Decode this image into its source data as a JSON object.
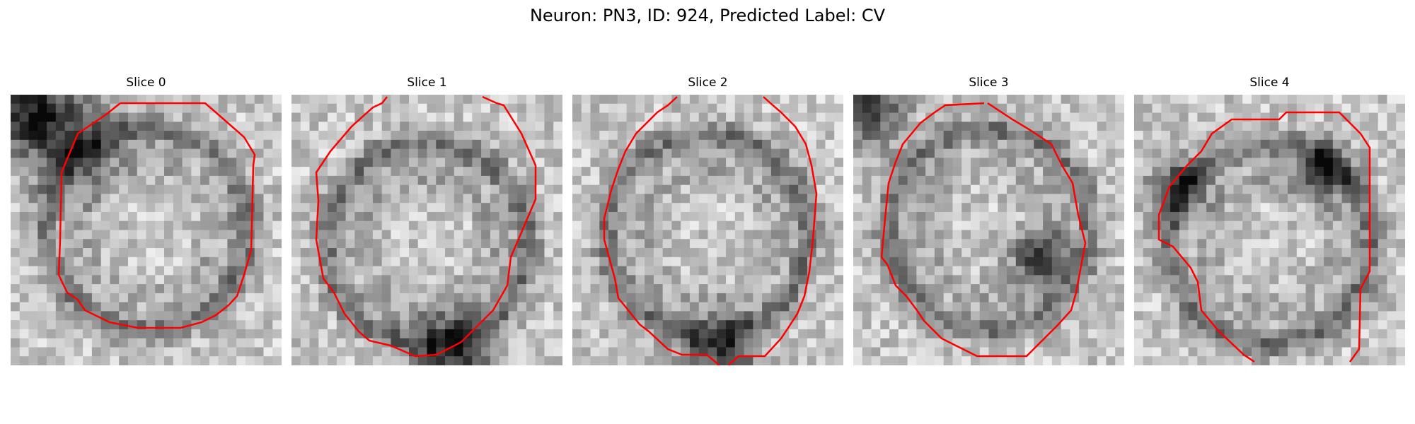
{
  "figure": {
    "title": "Neuron: PN3, ID: 924, Predicted Label: CV"
  },
  "panels": [
    {
      "title": "Slice 0"
    },
    {
      "title": "Slice 1"
    },
    {
      "title": "Slice 2"
    },
    {
      "title": "Slice 3"
    },
    {
      "title": "Slice 4"
    }
  ],
  "colors": {
    "contour": "#ff0000"
  },
  "icons": []
}
